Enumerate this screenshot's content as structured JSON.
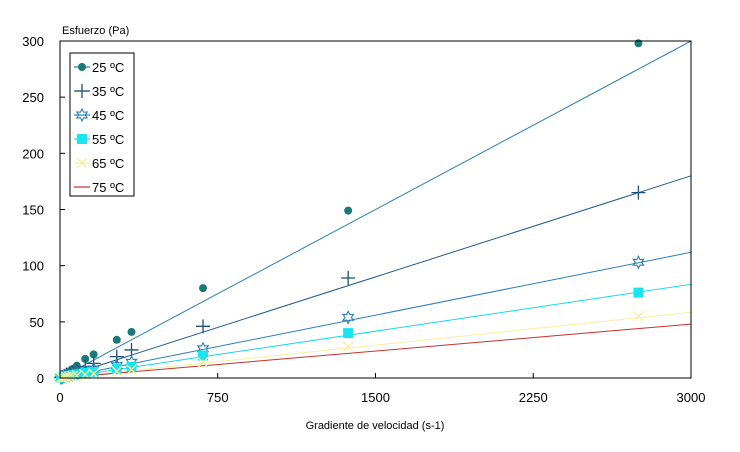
{
  "chart_data": {
    "type": "scatter",
    "title": "",
    "xlabel": "Gradiente de velocidad (s-1)",
    "ylabel": "Esfuerzo (Pa)",
    "xlim": [
      0,
      3000
    ],
    "ylim": [
      0,
      300
    ],
    "xticks": [
      0,
      750,
      1500,
      2250,
      3000
    ],
    "yticks": [
      0,
      50,
      100,
      150,
      200,
      250,
      300
    ],
    "grid": false,
    "legend_position": "top-left",
    "series": [
      {
        "name": "25 ºC",
        "color": "#1a7a77",
        "marker": "circle",
        "line_color": "#2b7fb5",
        "slope": 0.1,
        "points": [
          [
            5,
            1
          ],
          [
            10,
            1.5
          ],
          [
            20,
            3
          ],
          [
            30,
            4
          ],
          [
            45,
            6
          ],
          [
            60,
            8
          ],
          [
            80,
            11
          ],
          [
            120,
            17
          ],
          [
            160,
            21
          ],
          [
            270,
            34
          ],
          [
            340,
            41
          ],
          [
            680,
            80
          ],
          [
            1370,
            149
          ],
          [
            2750,
            298
          ]
        ]
      },
      {
        "name": "35 ºC",
        "color": "#1f4e79",
        "marker": "plus",
        "line_color": "#1f5a8a",
        "slope": 0.06,
        "points": [
          [
            5,
            0.5
          ],
          [
            10,
            1
          ],
          [
            20,
            2
          ],
          [
            30,
            3
          ],
          [
            45,
            4
          ],
          [
            60,
            5
          ],
          [
            80,
            7
          ],
          [
            120,
            10
          ],
          [
            160,
            13
          ],
          [
            270,
            19
          ],
          [
            340,
            25
          ],
          [
            680,
            46
          ],
          [
            1370,
            89
          ],
          [
            2750,
            165
          ]
        ]
      },
      {
        "name": "45 ºC",
        "color": "#2b7fb5",
        "marker": "star",
        "line_color": "#2b7fb5",
        "slope": 0.0373,
        "points": [
          [
            5,
            0.3
          ],
          [
            10,
            0.6
          ],
          [
            20,
            1.2
          ],
          [
            30,
            1.6
          ],
          [
            45,
            2.2
          ],
          [
            60,
            3
          ],
          [
            80,
            4
          ],
          [
            120,
            6
          ],
          [
            160,
            8
          ],
          [
            270,
            11
          ],
          [
            340,
            14
          ],
          [
            680,
            26
          ],
          [
            1370,
            54
          ],
          [
            2750,
            103
          ]
        ]
      },
      {
        "name": "55 ºC",
        "color": "#17e6f0",
        "marker": "square",
        "line_color": "#17d8f0",
        "slope": 0.0278,
        "points": [
          [
            5,
            0.2
          ],
          [
            10,
            0.5
          ],
          [
            20,
            1
          ],
          [
            30,
            1.3
          ],
          [
            45,
            1.8
          ],
          [
            60,
            2.5
          ],
          [
            80,
            3.2
          ],
          [
            120,
            4.5
          ],
          [
            160,
            5.5
          ],
          [
            270,
            8
          ],
          [
            340,
            10
          ],
          [
            680,
            20
          ],
          [
            1370,
            40
          ],
          [
            2750,
            76
          ]
        ]
      },
      {
        "name": "65 ºC",
        "color": "#f5f0a0",
        "marker": "cross",
        "line_color": "#f5f0a0",
        "slope": 0.0195,
        "points": [
          [
            5,
            0.2
          ],
          [
            10,
            0.3
          ],
          [
            20,
            0.6
          ],
          [
            30,
            0.9
          ],
          [
            45,
            1.2
          ],
          [
            60,
            1.6
          ],
          [
            80,
            2.1
          ],
          [
            120,
            3
          ],
          [
            160,
            3.8
          ],
          [
            270,
            6
          ],
          [
            340,
            7.5
          ],
          [
            680,
            14
          ],
          [
            1370,
            28
          ],
          [
            2750,
            55
          ]
        ]
      },
      {
        "name": "75 ºC",
        "color": "#c8322c",
        "marker": "none",
        "line_color": "#c8322c",
        "slope": 0.016,
        "points": []
      }
    ]
  }
}
